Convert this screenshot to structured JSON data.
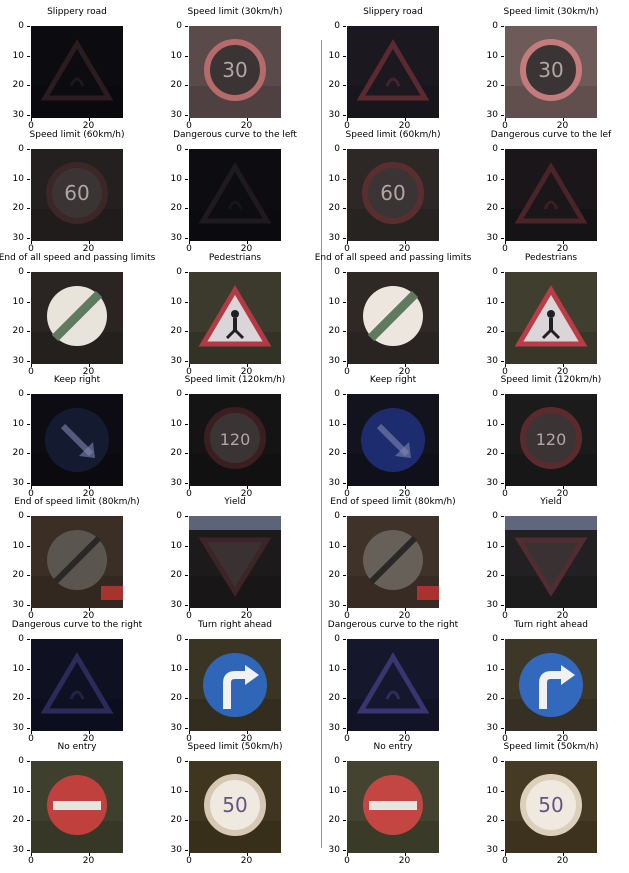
{
  "colors": {
    "divider": "#d08a1f"
  },
  "axes": {
    "yticks": [
      "0",
      "10",
      "20",
      "30"
    ],
    "xticks": [
      "0",
      "20"
    ]
  },
  "panels": [
    {
      "title": "Slippery road",
      "kind": "triangle",
      "bg": "#0c0b10",
      "sign": "#2a1c1f"
    },
    {
      "title": "Speed limit (30km/h)",
      "kind": "speed",
      "bg": "#5b4a4a",
      "sign": "#b66a6a",
      "text": "30"
    },
    {
      "title": "Slippery road",
      "kind": "triangle",
      "bg": "#1c1820",
      "sign": "#5a2a30"
    },
    {
      "title": "Speed limit (30km/h)",
      "kind": "speed",
      "bg": "#6e5a58",
      "sign": "#c47b7b",
      "text": "30"
    },
    {
      "title": "Speed limit (60km/h)",
      "kind": "speed",
      "bg": "#24201f",
      "sign": "#3d2627",
      "text": "60"
    },
    {
      "title": "Dangerous curve to the left",
      "kind": "triangle",
      "bg": "#0d0c10",
      "sign": "#1e1a1e"
    },
    {
      "title": "Speed limit (60km/h)",
      "kind": "speed",
      "bg": "#2d2826",
      "sign": "#5a2e2e",
      "text": "60"
    },
    {
      "title": "Dangerous curve to the lef",
      "kind": "triangle",
      "bg": "#1a161a",
      "sign": "#4a2428"
    },
    {
      "title": "End of all speed and passing limits",
      "kind": "end",
      "bg": "#2a2522",
      "sign": "#e8e4dc"
    },
    {
      "title": "Pedestrians",
      "kind": "triangle-white",
      "bg": "#3b3a2c",
      "sign": "#b33a44"
    },
    {
      "title": "End of all speed and passing limits",
      "kind": "end",
      "bg": "#2f2926",
      "sign": "#ece6de"
    },
    {
      "title": "Pedestrians",
      "kind": "triangle-white",
      "bg": "#403e2f",
      "sign": "#bb3c46"
    },
    {
      "title": "Keep right",
      "kind": "blue-arrow",
      "bg": "#0c0c12",
      "sign": "#141b30"
    },
    {
      "title": "Speed limit (120km/h)",
      "kind": "speed",
      "bg": "#141414",
      "sign": "#3a1e20",
      "text": "120"
    },
    {
      "title": "Keep right",
      "kind": "blue-arrow",
      "bg": "#12131d",
      "sign": "#1d2c6e"
    },
    {
      "title": "Speed limit (120km/h)",
      "kind": "speed",
      "bg": "#1b1b1c",
      "sign": "#5b2a2c",
      "text": "120"
    },
    {
      "title": "End of speed limit (80km/h)",
      "kind": "end80",
      "bg": "#3a2e25",
      "sign": "#5a564f"
    },
    {
      "title": "Yield",
      "kind": "yield",
      "bg": "#1c1a1b",
      "sign": "#3c2427"
    },
    {
      "title": "End of speed limit (80km/h)",
      "kind": "end80",
      "bg": "#3f3229",
      "sign": "#676058"
    },
    {
      "title": "Yield",
      "kind": "yield",
      "bg": "#222022",
      "sign": "#512c30"
    },
    {
      "title": "Dangerous curve to the right",
      "kind": "triangle",
      "bg": "#0f1122",
      "sign": "#2c2a5a"
    },
    {
      "title": "Turn right ahead",
      "kind": "blue-turn",
      "bg": "#3a3424",
      "sign": "#2f66b8"
    },
    {
      "title": "Dangerous curve to the right",
      "kind": "triangle",
      "bg": "#15172c",
      "sign": "#3a3470"
    },
    {
      "title": "Turn right ahead",
      "kind": "blue-turn",
      "bg": "#3d3728",
      "sign": "#3369bc"
    },
    {
      "title": "No entry",
      "kind": "noentry",
      "bg": "#3e3f2c",
      "sign": "#c0403d"
    },
    {
      "title": "Speed limit (50km/h)",
      "kind": "speed-bright",
      "bg": "#40361f",
      "sign": "#d6c8b2",
      "text": "50"
    },
    {
      "title": "No entry",
      "kind": "noentry",
      "bg": "#43432f",
      "sign": "#c34643"
    },
    {
      "title": "Speed limit (50km/h)",
      "kind": "speed-bright",
      "bg": "#453a23",
      "sign": "#ddd0bb",
      "text": "50"
    }
  ]
}
